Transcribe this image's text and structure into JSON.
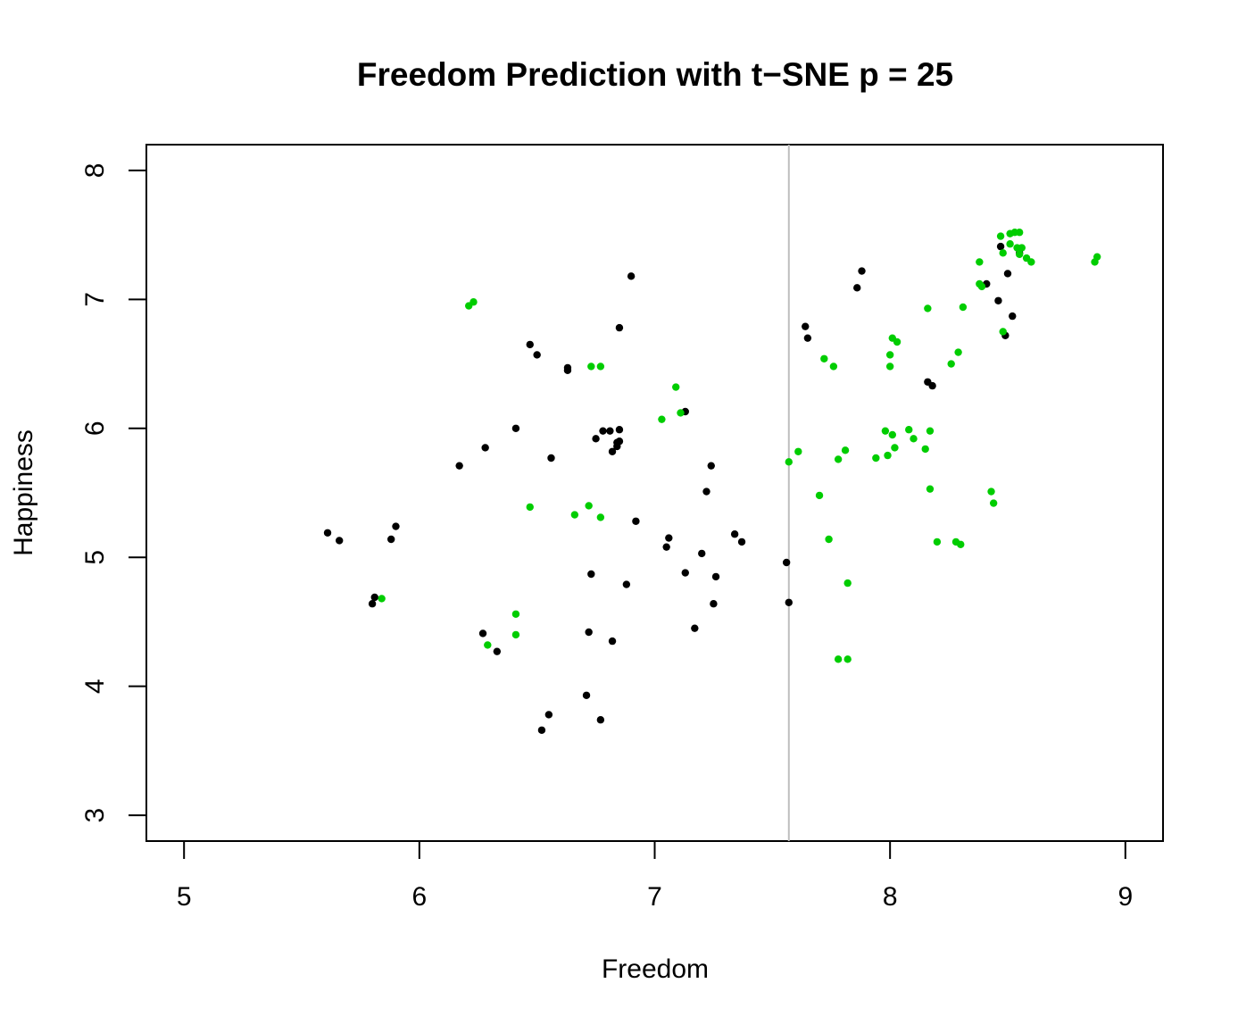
{
  "chart_data": {
    "type": "scatter",
    "title": "Freedom Prediction with t−SNE p = 25",
    "xlabel": "Freedom",
    "ylabel": "Happiness",
    "xlim": [
      4.84,
      9.16
    ],
    "ylim": [
      2.8,
      8.2
    ],
    "xticks": [
      5,
      6,
      7,
      8,
      9
    ],
    "yticks": [
      3,
      4,
      5,
      6,
      7,
      8
    ],
    "xtick_labels": [
      "5",
      "6",
      "7",
      "8",
      "9"
    ],
    "ytick_labels": [
      "3",
      "4",
      "5",
      "6",
      "7",
      "8"
    ],
    "grid": false,
    "vline": {
      "x": 7.57,
      "color": "#bebebe"
    },
    "series": [
      {
        "color": "#000000",
        "points": [
          [
            5.61,
            5.19
          ],
          [
            5.66,
            5.13
          ],
          [
            5.8,
            4.64
          ],
          [
            5.81,
            4.69
          ],
          [
            5.88,
            5.14
          ],
          [
            5.9,
            5.24
          ],
          [
            6.17,
            5.71
          ],
          [
            6.27,
            4.41
          ],
          [
            6.28,
            5.85
          ],
          [
            6.33,
            4.27
          ],
          [
            6.41,
            6.0
          ],
          [
            6.47,
            6.65
          ],
          [
            6.5,
            6.57
          ],
          [
            6.52,
            3.66
          ],
          [
            6.55,
            3.78
          ],
          [
            6.56,
            5.77
          ],
          [
            6.63,
            6.47
          ],
          [
            6.63,
            6.45
          ],
          [
            6.71,
            3.93
          ],
          [
            6.72,
            4.42
          ],
          [
            6.73,
            4.87
          ],
          [
            6.75,
            5.92
          ],
          [
            6.77,
            3.74
          ],
          [
            6.78,
            5.98
          ],
          [
            6.81,
            5.98
          ],
          [
            6.82,
            5.82
          ],
          [
            6.82,
            4.35
          ],
          [
            6.84,
            5.89
          ],
          [
            6.84,
            5.86
          ],
          [
            6.85,
            5.9
          ],
          [
            6.85,
            5.99
          ],
          [
            6.85,
            6.78
          ],
          [
            6.88,
            4.79
          ],
          [
            6.9,
            7.18
          ],
          [
            6.92,
            5.28
          ],
          [
            7.05,
            5.08
          ],
          [
            7.06,
            5.15
          ],
          [
            7.13,
            6.13
          ],
          [
            7.13,
            4.88
          ],
          [
            7.17,
            4.45
          ],
          [
            7.2,
            5.03
          ],
          [
            7.22,
            5.51
          ],
          [
            7.24,
            5.71
          ],
          [
            7.25,
            4.64
          ],
          [
            7.26,
            4.85
          ],
          [
            7.34,
            5.18
          ],
          [
            7.37,
            5.12
          ],
          [
            7.56,
            4.96
          ],
          [
            7.57,
            4.65
          ],
          [
            7.64,
            6.79
          ],
          [
            7.65,
            6.7
          ],
          [
            7.86,
            7.09
          ],
          [
            7.88,
            7.22
          ],
          [
            8.16,
            6.36
          ],
          [
            8.18,
            6.33
          ],
          [
            8.41,
            7.12
          ],
          [
            8.46,
            6.99
          ],
          [
            8.47,
            7.41
          ],
          [
            8.49,
            6.72
          ],
          [
            8.5,
            7.2
          ],
          [
            8.52,
            6.87
          ],
          [
            8.55,
            7.36
          ]
        ]
      },
      {
        "color": "#00cd00",
        "points": [
          [
            5.84,
            4.68
          ],
          [
            6.21,
            6.95
          ],
          [
            6.23,
            6.98
          ],
          [
            6.29,
            4.32
          ],
          [
            6.41,
            4.56
          ],
          [
            6.41,
            4.4
          ],
          [
            6.47,
            5.39
          ],
          [
            6.66,
            5.33
          ],
          [
            6.72,
            5.4
          ],
          [
            6.73,
            6.48
          ],
          [
            6.77,
            6.48
          ],
          [
            6.77,
            5.31
          ],
          [
            7.03,
            6.07
          ],
          [
            7.09,
            6.32
          ],
          [
            7.11,
            6.12
          ],
          [
            7.57,
            5.74
          ],
          [
            7.61,
            5.82
          ],
          [
            7.7,
            5.48
          ],
          [
            7.72,
            6.54
          ],
          [
            7.74,
            5.14
          ],
          [
            7.76,
            6.48
          ],
          [
            7.78,
            4.21
          ],
          [
            7.78,
            5.76
          ],
          [
            7.81,
            5.83
          ],
          [
            7.82,
            4.8
          ],
          [
            7.82,
            4.21
          ],
          [
            7.94,
            5.77
          ],
          [
            7.98,
            5.98
          ],
          [
            7.99,
            5.79
          ],
          [
            8.0,
            6.57
          ],
          [
            8.0,
            6.48
          ],
          [
            8.01,
            6.7
          ],
          [
            8.01,
            5.95
          ],
          [
            8.02,
            5.85
          ],
          [
            8.03,
            6.67
          ],
          [
            8.08,
            5.99
          ],
          [
            8.1,
            5.92
          ],
          [
            8.15,
            5.84
          ],
          [
            8.16,
            6.93
          ],
          [
            8.17,
            5.98
          ],
          [
            8.17,
            5.53
          ],
          [
            8.2,
            5.12
          ],
          [
            8.26,
            6.5
          ],
          [
            8.28,
            5.12
          ],
          [
            8.29,
            6.59
          ],
          [
            8.3,
            5.1
          ],
          [
            8.31,
            6.94
          ],
          [
            8.38,
            7.12
          ],
          [
            8.38,
            7.29
          ],
          [
            8.39,
            7.1
          ],
          [
            8.43,
            5.51
          ],
          [
            8.44,
            5.42
          ],
          [
            8.47,
            7.49
          ],
          [
            8.48,
            7.36
          ],
          [
            8.48,
            6.75
          ],
          [
            8.51,
            7.51
          ],
          [
            8.51,
            7.43
          ],
          [
            8.53,
            7.52
          ],
          [
            8.54,
            7.4
          ],
          [
            8.55,
            7.52
          ],
          [
            8.55,
            7.35
          ],
          [
            8.56,
            7.4
          ],
          [
            8.58,
            7.32
          ],
          [
            8.6,
            7.29
          ],
          [
            8.87,
            7.29
          ],
          [
            8.88,
            7.33
          ]
        ]
      }
    ]
  }
}
